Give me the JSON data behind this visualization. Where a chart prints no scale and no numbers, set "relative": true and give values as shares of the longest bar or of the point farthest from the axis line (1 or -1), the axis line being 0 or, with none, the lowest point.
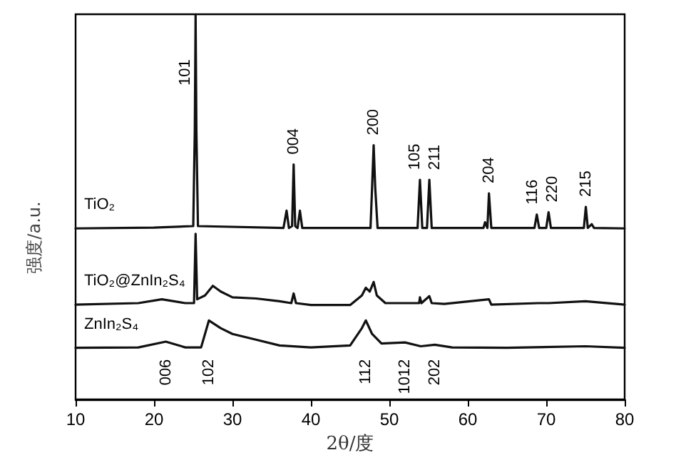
{
  "chart_data": {
    "type": "line",
    "xlabel": "2θ/度",
    "ylabel": "强度/a.u.",
    "relative": true,
    "xlim": [
      10,
      80
    ],
    "xticks": [
      10,
      20,
      30,
      40,
      50,
      60,
      70,
      80
    ],
    "grid": false,
    "legend": false,
    "marker": "none",
    "line_style": "solid",
    "series": [
      {
        "name": "TiO₂",
        "color": "#111111",
        "x": [
          10,
          20,
          25.0,
          25.2,
          25.3,
          25.4,
          25.6,
          36.5,
          36.9,
          37.2,
          37.6,
          37.8,
          38.0,
          38.3,
          38.6,
          38.9,
          47.6,
          47.8,
          48.0,
          48.2,
          48.5,
          53.6,
          53.9,
          54.2,
          54.8,
          55.1,
          55.4,
          62.0,
          62.2,
          62.5,
          62.7,
          63.0,
          68.5,
          68.8,
          69.1,
          70.0,
          70.3,
          70.6,
          74.8,
          75.05,
          75.3,
          75.8,
          76.1,
          80
        ],
        "values": [
          0.444,
          0.446,
          0.45,
          0.7,
          1.0,
          0.7,
          0.45,
          0.445,
          0.49,
          0.445,
          0.45,
          0.61,
          0.45,
          0.445,
          0.49,
          0.445,
          0.445,
          0.55,
          0.66,
          0.55,
          0.445,
          0.445,
          0.57,
          0.445,
          0.445,
          0.57,
          0.445,
          0.445,
          0.46,
          0.445,
          0.535,
          0.445,
          0.445,
          0.48,
          0.445,
          0.445,
          0.486,
          0.445,
          0.445,
          0.5,
          0.445,
          0.455,
          0.445,
          0.444
        ]
      },
      {
        "name": "TiO₂@ZnIn₂S₄",
        "color": "#111111",
        "x": [
          10,
          18,
          21,
          24,
          25.1,
          25.3,
          25.5,
          26.5,
          27.5,
          28.5,
          30,
          33,
          36,
          37.5,
          37.8,
          38.1,
          40,
          45,
          46.5,
          47,
          47.5,
          48,
          48.4,
          49.5,
          53.8,
          53.9,
          54.1,
          55.1,
          55.4,
          57,
          62.7,
          63,
          69,
          70.3,
          75,
          80
        ],
        "values": [
          0.246,
          0.25,
          0.26,
          0.25,
          0.25,
          0.43,
          0.26,
          0.27,
          0.295,
          0.28,
          0.265,
          0.262,
          0.255,
          0.25,
          0.275,
          0.25,
          0.245,
          0.245,
          0.27,
          0.29,
          0.28,
          0.305,
          0.27,
          0.25,
          0.25,
          0.265,
          0.25,
          0.268,
          0.25,
          0.248,
          0.26,
          0.246,
          0.25,
          0.25,
          0.255,
          0.246
        ]
      },
      {
        "name": "ZnIn₂S₄",
        "color": "#111111",
        "x": [
          10,
          18,
          21.5,
          24,
          26,
          27,
          28.5,
          30,
          33,
          36,
          40,
          45,
          46.5,
          47,
          47.8,
          49,
          52,
          54,
          55.8,
          58,
          65,
          75,
          80
        ],
        "values": [
          0.134,
          0.135,
          0.15,
          0.135,
          0.135,
          0.205,
          0.185,
          0.17,
          0.155,
          0.14,
          0.135,
          0.14,
          0.185,
          0.205,
          0.17,
          0.145,
          0.148,
          0.138,
          0.142,
          0.135,
          0.134,
          0.138,
          0.134
        ]
      }
    ],
    "annotations": [
      {
        "text": "101",
        "x": 25.3,
        "y": 1.0
      },
      {
        "text": "004",
        "x": 37.8,
        "y": 0.61
      },
      {
        "text": "200",
        "x": 48.0,
        "y": 0.66
      },
      {
        "text": "105",
        "x": 53.9,
        "y": 0.57
      },
      {
        "text": "211",
        "x": 55.1,
        "y": 0.57
      },
      {
        "text": "204",
        "x": 62.7,
        "y": 0.535
      },
      {
        "text": "116",
        "x": 68.8,
        "y": 0.48
      },
      {
        "text": "220",
        "x": 70.3,
        "y": 0.486
      },
      {
        "text": "215",
        "x": 75.05,
        "y": 0.5
      },
      {
        "text": "006",
        "x": 21.5,
        "y": 0.15
      },
      {
        "text": "102",
        "x": 27,
        "y": 0.205
      },
      {
        "text": "112",
        "x": 47,
        "y": 0.205
      },
      {
        "text": "1012",
        "x": 52,
        "y": 0.148
      },
      {
        "text": "202",
        "x": 55.8,
        "y": 0.142
      }
    ]
  }
}
